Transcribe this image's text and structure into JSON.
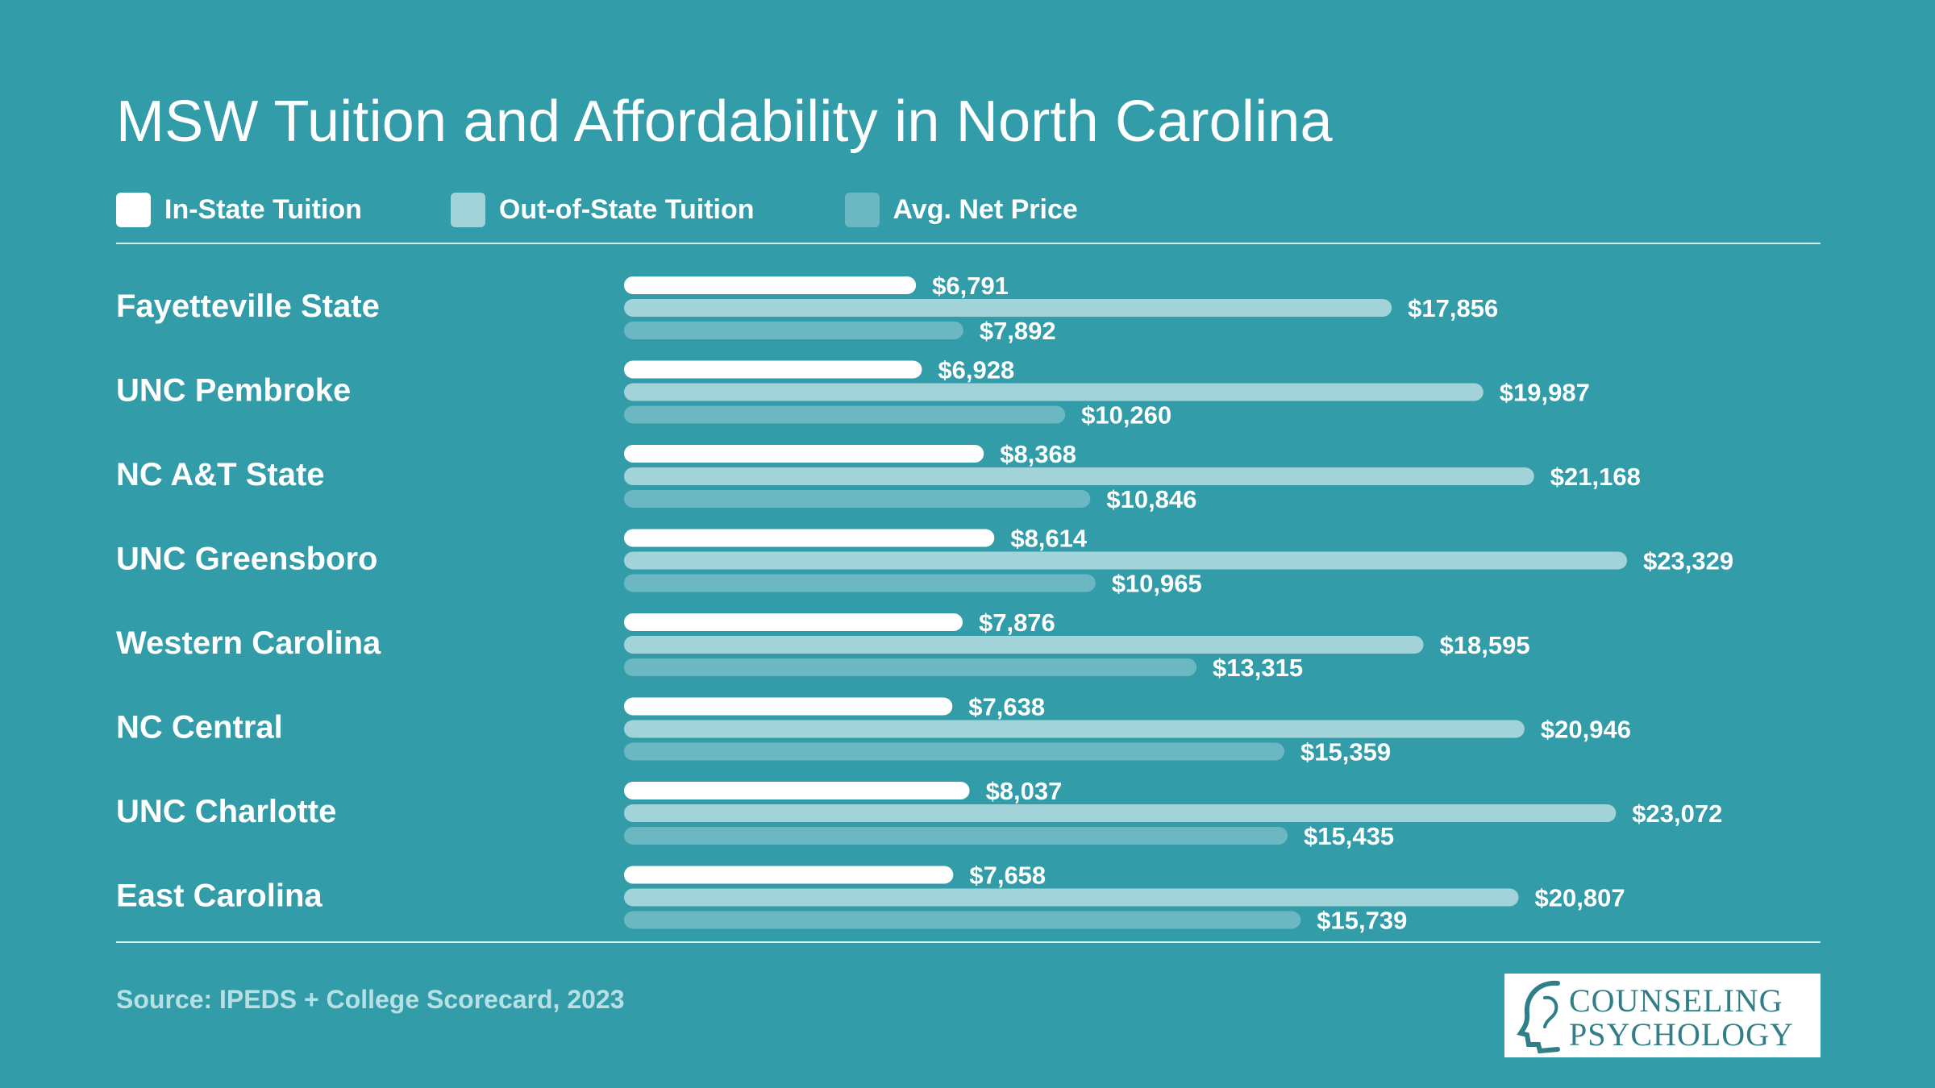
{
  "title": "MSW Tuition and Affordability in North Carolina",
  "legend": [
    {
      "label": "In-State Tuition",
      "color": "#ffffff"
    },
    {
      "label": "Out-of-State Tuition",
      "color": "#a2d3d9"
    },
    {
      "label": "Avg. Net Price",
      "color": "#6bb8c2"
    }
  ],
  "source": "Source: IPEDS + College Scorecard, 2023",
  "logo": {
    "line1": "COUNSELING",
    "line2": "PSYCHOLOGY",
    "icon": "head-profile-icon"
  },
  "colors": {
    "background": "#329ca9",
    "in_state": "#ffffff",
    "out_of_state": "#a2d3d9",
    "net_price": "#6bb8c2"
  },
  "chart_data": {
    "type": "bar",
    "orientation": "horizontal",
    "title": "MSW Tuition and Affordability in North Carolina",
    "categories": [
      "Fayetteville State",
      "UNC Pembroke",
      "NC A&T State",
      "UNC Greensboro",
      "Western Carolina",
      "NC Central",
      "UNC Charlotte",
      "East Carolina"
    ],
    "series": [
      {
        "name": "In-State Tuition",
        "values": [
          6791,
          6928,
          8368,
          8614,
          7876,
          7638,
          8037,
          7658
        ],
        "labels": [
          "$6,791",
          "$6,928",
          "$8,368",
          "$8,614",
          "$7,876",
          "$7,638",
          "$8,037",
          "$7,658"
        ]
      },
      {
        "name": "Out-of-State Tuition",
        "values": [
          17856,
          19987,
          21168,
          23329,
          18595,
          20946,
          23072,
          20807
        ],
        "labels": [
          "$17,856",
          "$19,987",
          "$21,168",
          "$23,329",
          "$18,595",
          "$20,946",
          "$23,072",
          "$20,807"
        ]
      },
      {
        "name": "Avg. Net Price",
        "values": [
          7892,
          10260,
          10846,
          10965,
          13315,
          15359,
          15435,
          15739
        ],
        "labels": [
          "$7,892",
          "$10,260",
          "$10,846",
          "$10,965",
          "$13,315",
          "$15,359",
          "$15,435",
          "$15,739"
        ]
      }
    ],
    "xlim": [
      0,
      23329
    ],
    "grid": false,
    "legend_position": "top-left"
  }
}
